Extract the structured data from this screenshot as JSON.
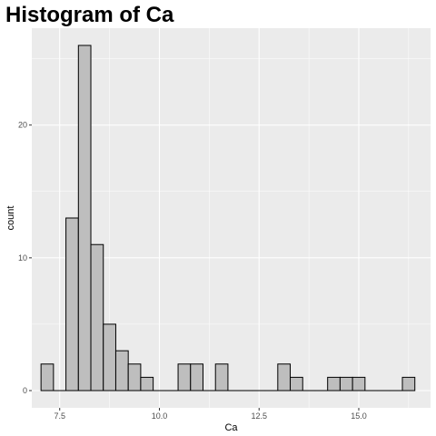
{
  "chart_data": {
    "type": "histogram",
    "title": "Histogram of Ca",
    "xlabel": "Ca",
    "ylabel": "count",
    "xlim": [
      6.8,
      16.8
    ],
    "ylim": [
      -1.3,
      27.3
    ],
    "bin_width": 0.3125,
    "bin_centers": [
      7.1875,
      7.5,
      7.8125,
      8.125,
      8.4375,
      8.75,
      9.0625,
      9.375,
      9.6875,
      10.0,
      10.3125,
      10.625,
      10.9375,
      11.25,
      11.5625,
      11.875,
      12.1875,
      12.5,
      12.8125,
      13.125,
      13.4375,
      13.75,
      14.0625,
      14.375,
      14.6875,
      15.0,
      15.3125,
      15.625,
      15.9375,
      16.25
    ],
    "counts": [
      2,
      0,
      13,
      26,
      11,
      5,
      3,
      2,
      1,
      0,
      0,
      2,
      2,
      0,
      2,
      0,
      0,
      0,
      0,
      2,
      1,
      0,
      0,
      1,
      1,
      1,
      0,
      0,
      0,
      1
    ],
    "x_ticks": [
      7.5,
      10.0,
      12.5,
      15.0
    ],
    "x_tick_labels": [
      "7.5",
      "10.0",
      "12.5",
      "15.0"
    ],
    "y_ticks": [
      0,
      10,
      20
    ],
    "y_tick_labels": [
      "0",
      "10",
      "20"
    ],
    "grid": true,
    "colors": {
      "panel_background": "#EBEBEB",
      "grid_major": "#FFFFFF",
      "bar_fill": "#BEBEBE",
      "bar_outline": "#000000"
    }
  }
}
